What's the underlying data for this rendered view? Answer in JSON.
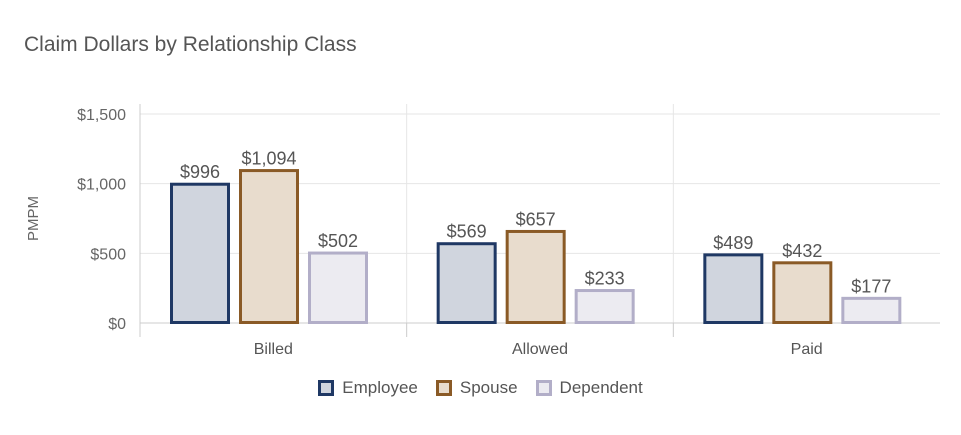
{
  "chart_data": {
    "type": "bar",
    "title": "Claim Dollars by Relationship Class",
    "xlabel": "",
    "ylabel": "PMPM",
    "categories": [
      "Billed",
      "Allowed",
      "Paid"
    ],
    "ylim": [
      0,
      1500
    ],
    "yticks": [
      0,
      500,
      1000,
      1500
    ],
    "ytick_labels": [
      "$0",
      "$500",
      "$1,000",
      "$1,500"
    ],
    "grid": true,
    "legend_position": "bottom-center",
    "series": [
      {
        "name": "Employee",
        "values": [
          996,
          569,
          489
        ],
        "labels": [
          "$996",
          "$569",
          "$489"
        ],
        "fill": "#d0d5de",
        "stroke": "#1f3864"
      },
      {
        "name": "Spouse",
        "values": [
          1094,
          657,
          432
        ],
        "labels": [
          "$1,094",
          "$657",
          "$432"
        ],
        "fill": "#e8dccd",
        "stroke": "#8a5a26"
      },
      {
        "name": "Dependent",
        "values": [
          502,
          233,
          177
        ],
        "labels": [
          "$502",
          "$233",
          "$177"
        ],
        "fill": "#ecebf1",
        "stroke": "#b2aec8"
      }
    ]
  }
}
